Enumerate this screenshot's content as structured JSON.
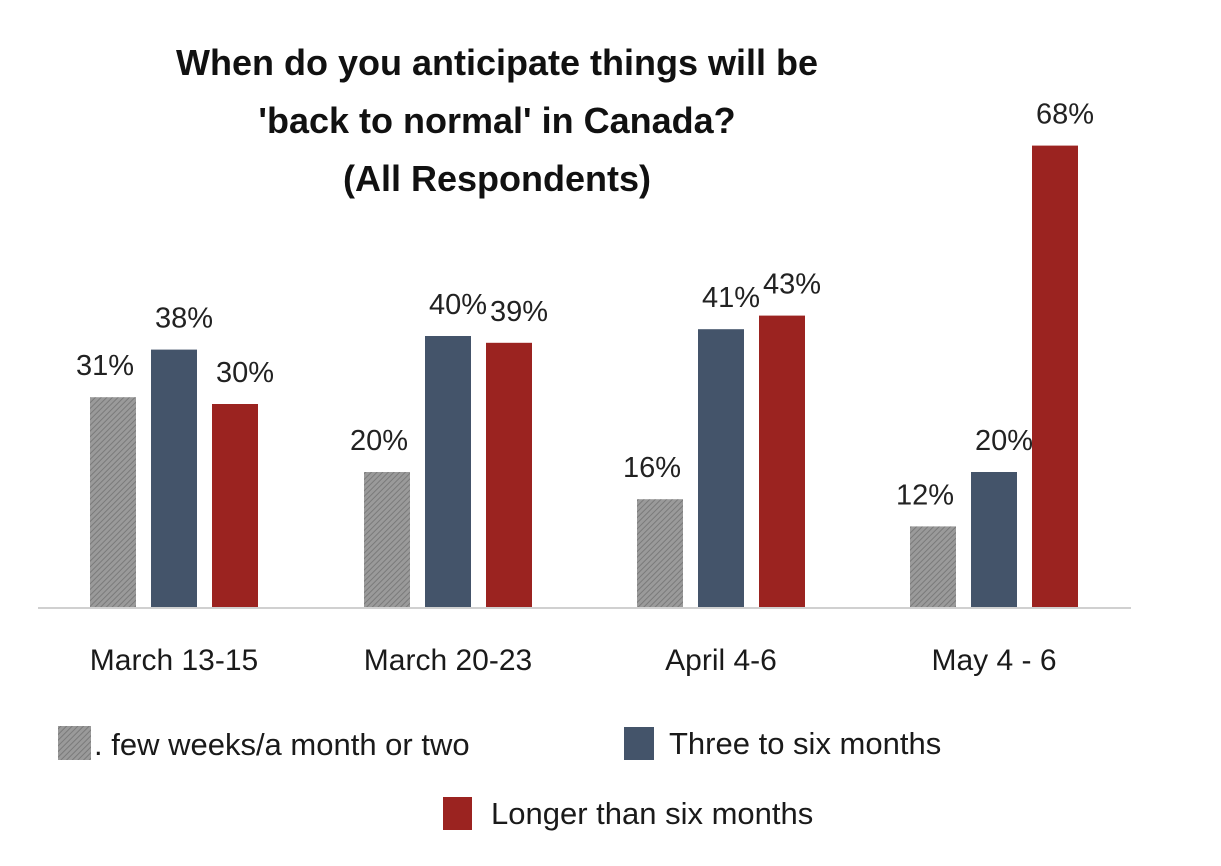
{
  "chart_data": {
    "type": "bar",
    "title_lines": [
      "When do you anticipate things will be",
      "'back to normal' in Canada?",
      "(All Respondents)"
    ],
    "categories": [
      "March 13-15",
      "March 20-23",
      "April 4-6",
      "May 4 - 6"
    ],
    "series": [
      {
        "name": ". few weeks/a month or two",
        "values": [
          31,
          20,
          16,
          12
        ],
        "color": "#8c8c8c",
        "data_labels": [
          "31%",
          "20%",
          "16%",
          "12%"
        ]
      },
      {
        "name": "Three to six months",
        "values": [
          38,
          40,
          41,
          20
        ],
        "color": "#44546a",
        "data_labels": [
          "38%",
          "40%",
          "41%",
          "20%"
        ]
      },
      {
        "name": "Longer than six months",
        "values": [
          30,
          39,
          43,
          68
        ],
        "color": "#9b2320",
        "data_labels": [
          "30%",
          "39%",
          "43%",
          "68%"
        ]
      }
    ],
    "ylim": [
      0,
      68
    ],
    "xlabel": "",
    "ylabel": "",
    "grid": false,
    "legend_position": "bottom",
    "baseline_color": "#d0d0d0"
  }
}
